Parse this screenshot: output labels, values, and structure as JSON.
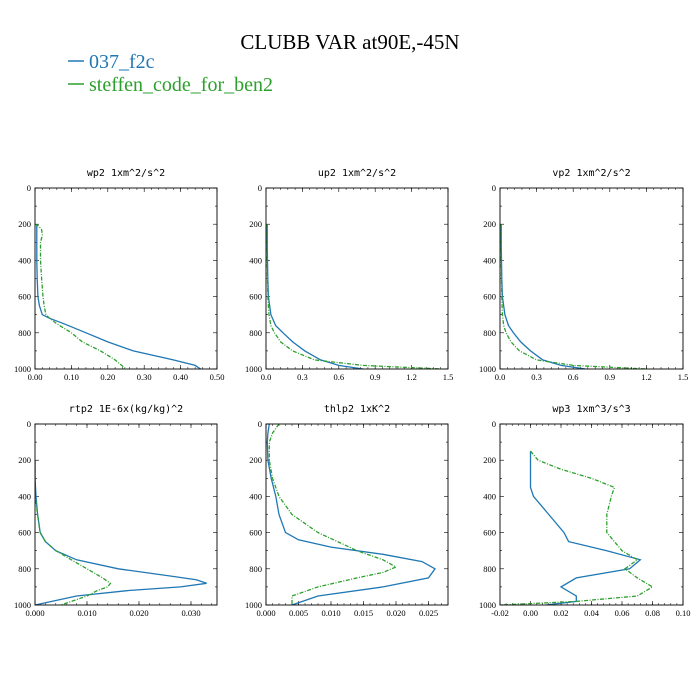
{
  "chart_data": {
    "type": "line",
    "title": "CLUBB VAR at90E,-45N",
    "legend": {
      "placement": "top-left",
      "entries": [
        {
          "name": "037_f2c",
          "color": "#1f77b4",
          "style": "solid"
        },
        {
          "name": "steffen_code_for_ben2",
          "color": "#2ca02c",
          "style": "dashed"
        }
      ]
    },
    "panels": [
      {
        "title": "wp2  1xm^2/s^2",
        "xlim": [
          0,
          0.5
        ],
        "ylim": [
          1000,
          0
        ],
        "xticks": [
          "0.00",
          "0.10",
          "0.20",
          "0.30",
          "0.40",
          "0.50"
        ],
        "yticks": [
          "0",
          "200",
          "400",
          "600",
          "800",
          "1000"
        ],
        "series": [
          {
            "name": "037_f2c",
            "y": [
              200,
              300,
              400,
              500,
              600,
              650,
              700,
              720,
              750,
              800,
              850,
              900,
              950,
              980,
              1000
            ],
            "x": [
              0.005,
              0.005,
              0.005,
              0.006,
              0.008,
              0.012,
              0.02,
              0.04,
              0.08,
              0.14,
              0.2,
              0.27,
              0.38,
              0.44,
              0.455
            ]
          },
          {
            "name": "steffen_code_for_ben2",
            "y": [
              200,
              210,
              230,
              260,
              300,
              400,
              500,
              600,
              650,
              700,
              720,
              750,
              800,
              850,
              900,
              950,
              1000
            ],
            "x": [
              0.0,
              0.01,
              0.018,
              0.02,
              0.015,
              0.015,
              0.018,
              0.022,
              0.025,
              0.03,
              0.04,
              0.06,
              0.1,
              0.13,
              0.18,
              0.22,
              0.25
            ]
          }
        ]
      },
      {
        "title": "up2  1xm^2/s^2",
        "xlim": [
          0,
          1.5
        ],
        "ylim": [
          1000,
          0
        ],
        "xticks": [
          "0.0",
          "0.3",
          "0.6",
          "0.9",
          "1.2",
          "1.5"
        ],
        "yticks": [
          "0",
          "200",
          "400",
          "600",
          "800",
          "1000"
        ],
        "series": [
          {
            "name": "037_f2c",
            "y": [
              200,
              300,
              400,
              500,
              600,
              700,
              760,
              800,
              850,
              900,
              950,
              980,
              1000
            ],
            "x": [
              0.01,
              0.01,
              0.012,
              0.015,
              0.02,
              0.04,
              0.08,
              0.14,
              0.22,
              0.32,
              0.45,
              0.6,
              0.8
            ]
          },
          {
            "name": "steffen_code_for_ben2",
            "y": [
              200,
              300,
              400,
              500,
              600,
              700,
              760,
              800,
              850,
              900,
              950,
              980,
              1000
            ],
            "x": [
              0.01,
              0.01,
              0.01,
              0.012,
              0.015,
              0.025,
              0.04,
              0.07,
              0.12,
              0.22,
              0.4,
              0.8,
              1.45
            ]
          }
        ]
      },
      {
        "title": "vp2  1xm^2/s^2",
        "xlim": [
          0,
          1.5
        ],
        "ylim": [
          1000,
          0
        ],
        "xticks": [
          "0.0",
          "0.3",
          "0.6",
          "0.9",
          "1.2",
          "1.5"
        ],
        "yticks": [
          "0",
          "200",
          "400",
          "600",
          "800",
          "1000"
        ],
        "series": [
          {
            "name": "037_f2c",
            "y": [
              200,
              300,
              400,
              500,
              600,
              700,
              760,
              800,
              850,
              900,
              950,
              980,
              1000
            ],
            "x": [
              0.01,
              0.01,
              0.012,
              0.015,
              0.02,
              0.04,
              0.07,
              0.11,
              0.17,
              0.25,
              0.35,
              0.5,
              0.7
            ]
          },
          {
            "name": "steffen_code_for_ben2",
            "y": [
              200,
              300,
              400,
              500,
              600,
              700,
              760,
              800,
              850,
              900,
              950,
              980,
              1000
            ],
            "x": [
              0.01,
              0.01,
              0.01,
              0.012,
              0.015,
              0.02,
              0.03,
              0.05,
              0.09,
              0.16,
              0.3,
              0.6,
              1.2
            ]
          }
        ]
      },
      {
        "title": "rtp2  1E-6x(kg/kg)^2",
        "xlim": [
          0,
          0.035
        ],
        "ylim": [
          1000,
          0
        ],
        "xticks": [
          "0.000",
          "0.010",
          "0.020",
          "0.030"
        ],
        "yticks": [
          "0",
          "200",
          "400",
          "600",
          "800",
          "1000"
        ],
        "series": [
          {
            "name": "037_f2c",
            "y": [
              200,
              300,
              400,
              500,
              600,
              650,
              700,
              750,
              800,
              840,
              860,
              880,
              900,
              920,
              950,
              1000
            ],
            "x": [
              0.0,
              0.0,
              0.0002,
              0.0005,
              0.001,
              0.002,
              0.004,
              0.008,
              0.016,
              0.026,
              0.031,
              0.033,
              0.028,
              0.018,
              0.008,
              0.0
            ]
          },
          {
            "name": "steffen_code_for_ben2",
            "y": [
              200,
              300,
              400,
              500,
              600,
              650,
              700,
              750,
              800,
              850,
              880,
              900,
              920,
              950,
              980,
              1000
            ],
            "x": [
              0.0,
              0.0,
              0.0,
              0.0005,
              0.001,
              0.002,
              0.004,
              0.007,
              0.01,
              0.013,
              0.0145,
              0.014,
              0.012,
              0.01,
              0.007,
              0.005
            ]
          }
        ]
      },
      {
        "title": "thlp2  1xK^2",
        "xlim": [
          0,
          0.028
        ],
        "ylim": [
          1000,
          0
        ],
        "xticks": [
          "0.000",
          "0.005",
          "0.010",
          "0.015",
          "0.020",
          "0.025"
        ],
        "yticks": [
          "0",
          "200",
          "400",
          "600",
          "800",
          "1000"
        ],
        "series": [
          {
            "name": "037_f2c",
            "y": [
              0,
              50,
              100,
              200,
              300,
              400,
              500,
              600,
              640,
              680,
              720,
              760,
              800,
              850,
              900,
              950,
              1000
            ],
            "x": [
              0.0005,
              0.0003,
              0.0002,
              0.0003,
              0.0008,
              0.0015,
              0.002,
              0.003,
              0.005,
              0.01,
              0.018,
              0.024,
              0.026,
              0.025,
              0.018,
              0.008,
              0.004
            ]
          },
          {
            "name": "steffen_code_for_ben2",
            "y": [
              0,
              50,
              100,
              200,
              300,
              400,
              500,
              600,
              650,
              700,
              750,
              790,
              820,
              850,
              900,
              950,
              1000
            ],
            "x": [
              0.002,
              0.001,
              0.0005,
              0.0005,
              0.001,
              0.002,
              0.004,
              0.008,
              0.011,
              0.014,
              0.018,
              0.02,
              0.018,
              0.014,
              0.008,
              0.004,
              0.004
            ]
          }
        ]
      },
      {
        "title": "wp3  1xm^3/s^3",
        "xlim": [
          -0.02,
          0.1
        ],
        "ylim": [
          1000,
          0
        ],
        "xticks": [
          "-0.02",
          "0.00",
          "0.02",
          "0.04",
          "0.06",
          "0.08",
          "0.10"
        ],
        "yticks": [
          "0",
          "200",
          "400",
          "600",
          "800",
          "1000"
        ],
        "series": [
          {
            "name": "037_f2c",
            "y": [
              150,
              200,
              300,
              350,
              400,
              500,
              600,
              650,
              700,
              750,
              800,
              850,
              900,
              950,
              980,
              1000
            ],
            "x": [
              0.0,
              0.0,
              0.0,
              0.0,
              0.002,
              0.012,
              0.022,
              0.025,
              0.05,
              0.072,
              0.065,
              0.03,
              0.02,
              0.03,
              0.03,
              0.01
            ]
          },
          {
            "name": "steffen_code_for_ben2",
            "y": [
              150,
              200,
              250,
              300,
              350,
              400,
              500,
              600,
              650,
              700,
              750,
              800,
              850,
              900,
              950,
              980,
              1000
            ],
            "x": [
              0.0,
              0.005,
              0.02,
              0.04,
              0.055,
              0.053,
              0.05,
              0.05,
              0.055,
              0.06,
              0.07,
              0.062,
              0.07,
              0.08,
              0.07,
              0.03,
              -0.02
            ]
          }
        ]
      }
    ]
  }
}
